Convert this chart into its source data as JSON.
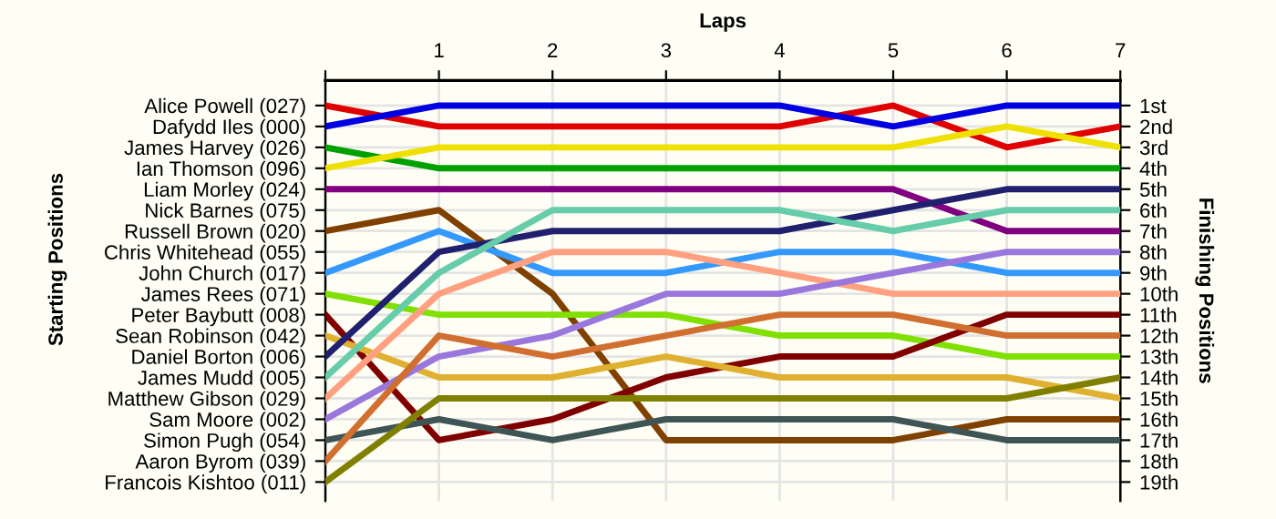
{
  "chart_data": {
    "type": "line",
    "xlabel": "Laps",
    "annotations": [
      "Starting Positions"
    ],
    "y2label": "Finishing Positions",
    "x": [
      0,
      1,
      2,
      3,
      4,
      5,
      6,
      7
    ],
    "xlim": [
      0,
      7
    ],
    "xticks": [
      {
        "value": 0,
        "label": null
      },
      1,
      2,
      3,
      4,
      5,
      6,
      7
    ],
    "y_categories": [
      "Alice Powell (027)",
      "Dafydd Iles (000)",
      "James Harvey (026)",
      "Ian Thomson (096)",
      "Liam Morley (024)",
      "Nick Barnes (075)",
      "Russell Brown (020)",
      "Chris Whitehead (055)",
      "John Church (017)",
      "James Rees (071)",
      "Peter Baybutt (008)",
      "Sean Robinson (042)",
      "Daniel Borton (006)",
      "James Mudd (005)",
      "Matthew Gibson (029)",
      "Sam Moore (002)",
      "Simon Pugh (054)",
      "Aaron Byrom (039)",
      "Francois Kishtoo (011)"
    ],
    "y2lim": [
      19.9,
      -0.2
    ],
    "y2ticks": [
      {
        "value": 1,
        "label": "1st"
      },
      {
        "value": 2,
        "label": "2nd"
      },
      {
        "value": 3,
        "label": "3rd"
      },
      {
        "value": 4,
        "label": "4th"
      },
      {
        "value": 5,
        "label": "5th"
      },
      {
        "value": 6,
        "label": "6th"
      },
      {
        "value": 7,
        "label": "7th"
      },
      {
        "value": 8,
        "label": "8th"
      },
      {
        "value": 9,
        "label": "9th"
      },
      {
        "value": 10,
        "label": "10th"
      },
      {
        "value": 11,
        "label": "11th"
      },
      {
        "value": 12,
        "label": "12th"
      },
      {
        "value": 13,
        "label": "13th"
      },
      {
        "value": 14,
        "label": "14th"
      },
      {
        "value": 15,
        "label": "15th"
      },
      {
        "value": 16,
        "label": "16th"
      },
      {
        "value": 17,
        "label": "17th"
      },
      {
        "value": 18,
        "label": "18th"
      },
      {
        "value": 19,
        "label": "19th"
      }
    ],
    "grid": true,
    "line_style": "solid",
    "marker": "none",
    "series": [
      {
        "axis": "y2",
        "color": "#e00000",
        "values": [
          1,
          2,
          2,
          2,
          2,
          1,
          3,
          2
        ]
      },
      {
        "axis": "y2",
        "color": "#0000e0",
        "values": [
          2,
          1,
          1,
          1,
          1,
          2,
          1,
          1
        ]
      },
      {
        "axis": "y2",
        "color": "#00a000",
        "values": [
          3,
          4,
          4,
          4,
          4,
          4,
          4,
          4
        ]
      },
      {
        "axis": "y2",
        "color": "#f0e000",
        "values": [
          4,
          3,
          3,
          3,
          3,
          3,
          2,
          3
        ]
      },
      {
        "axis": "y2",
        "color": "#800080",
        "values": [
          5,
          5,
          5,
          5,
          5,
          5,
          7,
          7
        ]
      },
      {
        "axis": "y2",
        "color": "#7f4000",
        "values": [
          7,
          6,
          10,
          17,
          17,
          17,
          16,
          16
        ]
      },
      {
        "axis": "y2",
        "color": "#3399ff",
        "values": [
          9,
          7,
          9,
          9,
          8,
          8,
          9,
          9
        ]
      },
      {
        "axis": "y2",
        "color": "#80e000",
        "values": [
          10,
          11,
          11,
          11,
          12,
          12,
          13,
          13
        ]
      },
      {
        "axis": "y2",
        "color": "#800000",
        "values": [
          11,
          17,
          16,
          14,
          13,
          13,
          11,
          11
        ]
      },
      {
        "axis": "y2",
        "color": "#e0b030",
        "values": [
          12,
          14,
          14,
          13,
          14,
          14,
          14,
          15
        ]
      },
      {
        "axis": "y2",
        "color": "#20206f",
        "values": [
          13,
          8,
          7,
          7,
          7,
          6,
          5,
          5
        ]
      },
      {
        "axis": "y2",
        "color": "#66ccaa",
        "values": [
          14,
          9,
          6,
          6,
          6,
          7,
          6,
          6
        ]
      },
      {
        "axis": "y2",
        "color": "#ffa080",
        "values": [
          15,
          10,
          8,
          8,
          9,
          10,
          10,
          10
        ]
      },
      {
        "axis": "y2",
        "color": "#9977dd",
        "values": [
          16,
          13,
          12,
          10,
          10,
          9,
          8,
          8
        ]
      },
      {
        "axis": "y2",
        "color": "#3f5555",
        "values": [
          17,
          16,
          17,
          16,
          16,
          16,
          17,
          17
        ]
      },
      {
        "axis": "y2",
        "color": "#d06f30",
        "values": [
          18,
          12,
          13,
          12,
          11,
          11,
          12,
          12
        ]
      },
      {
        "axis": "y2",
        "color": "#808000",
        "values": [
          19,
          15,
          15,
          15,
          15,
          15,
          15,
          14
        ]
      }
    ]
  }
}
